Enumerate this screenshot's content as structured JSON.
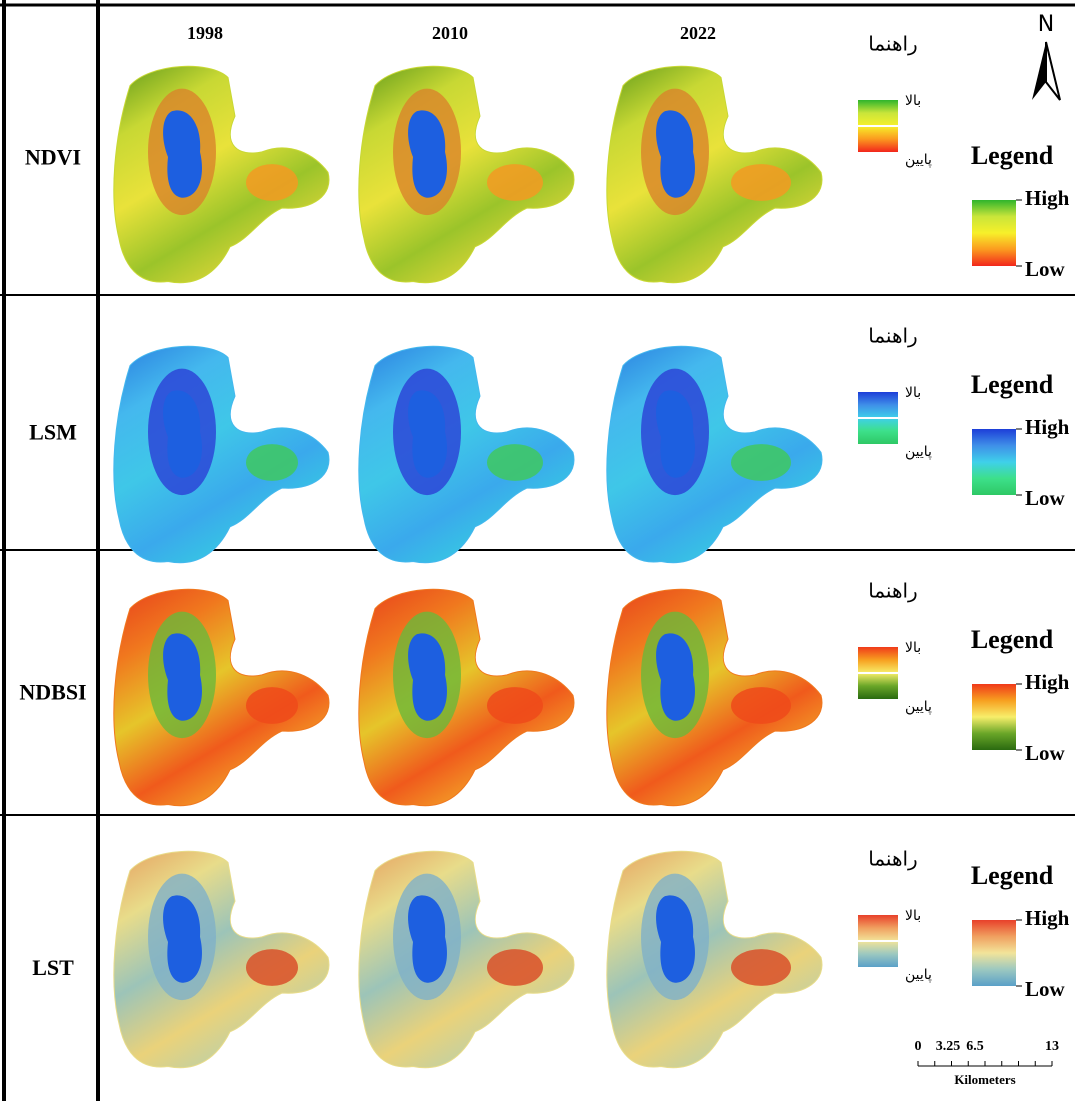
{
  "column_years": [
    "1998",
    "2010",
    "2022"
  ],
  "north_label": "N",
  "rows": [
    {
      "label": "NDVI",
      "legend_fa": {
        "title": "راهنما",
        "high": "بالا",
        "low": "پایین"
      },
      "legend_en": {
        "title": "Legend",
        "high": "High",
        "low": "Low"
      }
    },
    {
      "label": "LSM",
      "legend_fa": {
        "title": "راهنما",
        "high": "بالا",
        "low": "پایین"
      },
      "legend_en": {
        "title": "Legend",
        "high": "High",
        "low": "Low"
      }
    },
    {
      "label": "NDBSI",
      "legend_fa": {
        "title": "راهنما",
        "high": "بالا",
        "low": "پایین"
      },
      "legend_en": {
        "title": "Legend",
        "high": "High",
        "low": "Low"
      }
    },
    {
      "label": "LST",
      "legend_fa": {
        "title": "راهنما",
        "high": "بالا",
        "low": "پایین"
      },
      "legend_en": {
        "title": "Legend",
        "high": "High",
        "low": "Low"
      }
    }
  ],
  "scale_bar": {
    "labels": [
      "0",
      "3.25",
      "6.5",
      "13"
    ],
    "unit": "Kilometers"
  }
}
